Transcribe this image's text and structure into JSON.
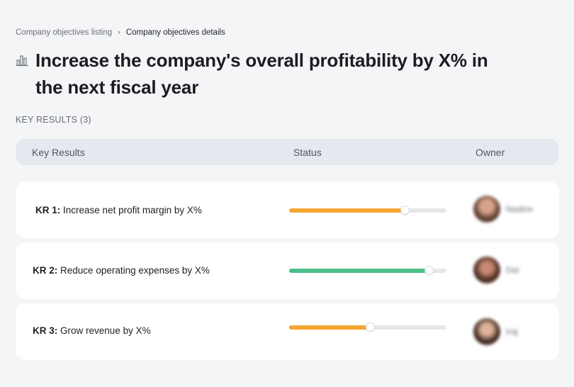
{
  "breadcrumb": {
    "parent": "Company objectives listing",
    "separator": "›",
    "current": "Company objectives details"
  },
  "objective": {
    "icon": "bar-chart-icon",
    "title": "Increase the company's overall profitability by X% in the next fiscal year"
  },
  "key_results_heading": "KEY RESULTS (3)",
  "table": {
    "columns": [
      "Key Results",
      "Status",
      "Owner"
    ]
  },
  "rows": [
    {
      "kr_id": "KR 1:",
      "label": "Increase net profit margin by X%",
      "progress": 0.74,
      "bar_color": "#f5a631",
      "owner": "Nadine"
    },
    {
      "kr_id": "KR 2:",
      "label": "Reduce operating expenses by X%",
      "progress": 0.89,
      "bar_color": "#4cbe88",
      "owner": "Dai"
    },
    {
      "kr_id": "KR 3:",
      "label": "Grow revenue by X%",
      "progress": 0.52,
      "bar_color": "#f5a631",
      "owner": "Iraj"
    }
  ],
  "colors": {
    "background": "#f4f5f7",
    "header_bg": "#e4e8ef",
    "track": "#e6e7e9"
  }
}
